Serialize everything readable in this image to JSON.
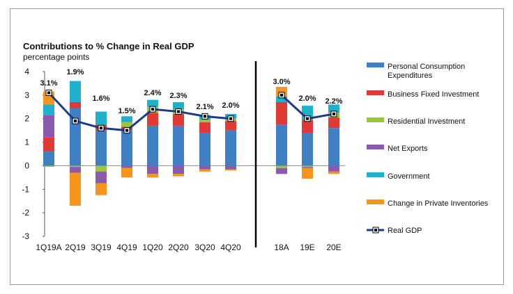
{
  "chart_data": {
    "type": "bar",
    "title": "Contributions to % Change in Real GDP",
    "subtitle": "percentage points",
    "ylim": [
      -3,
      4
    ],
    "yticks": [
      4,
      3,
      2,
      1,
      0,
      -1,
      -2,
      -3
    ],
    "categories": [
      "1Q19A",
      "2Q19",
      "3Q19",
      "4Q19",
      "1Q20",
      "2Q20",
      "3Q20",
      "4Q20",
      "18A",
      "19E",
      "20E"
    ],
    "legend_position": "right",
    "series": [
      {
        "name": "Personal Consumption Expenditures",
        "color": "#3f7fc4",
        "values": [
          0.6,
          2.45,
          1.5,
          1.5,
          1.7,
          1.7,
          1.4,
          1.5,
          1.75,
          1.4,
          1.6
        ]
      },
      {
        "name": "Business Fixed Investment",
        "color": "#e03a36",
        "values": [
          0.6,
          0.25,
          0.25,
          0.15,
          0.55,
          0.5,
          0.45,
          0.4,
          0.95,
          0.55,
          0.45
        ]
      },
      {
        "name": "Residential Investment",
        "color": "#9bc53d",
        "values": [
          -0.05,
          -0.05,
          -0.25,
          0.2,
          0.25,
          0.2,
          0.1,
          0.1,
          -0.1,
          -0.05,
          0.2
        ]
      },
      {
        "name": "Net Exports",
        "color": "#8b5aac",
        "values": [
          0.95,
          -0.25,
          -0.5,
          -0.1,
          -0.35,
          -0.35,
          -0.15,
          -0.15,
          -0.25,
          -0.05,
          -0.25
        ]
      },
      {
        "name": "Government",
        "color": "#1fb1cc",
        "values": [
          0.45,
          0.9,
          0.55,
          0.25,
          0.3,
          0.3,
          0.2,
          0.2,
          0.25,
          0.6,
          0.35
        ]
      },
      {
        "name": "Change in Private Inventories",
        "color": "#f7941d",
        "values": [
          0.55,
          -1.4,
          -0.5,
          -0.4,
          -0.15,
          -0.1,
          -0.1,
          -0.05,
          0.4,
          -0.45,
          -0.1
        ]
      }
    ],
    "line": {
      "name": "Real GDP",
      "color": "#1a3a8a",
      "values": [
        3.1,
        1.9,
        1.6,
        1.5,
        2.4,
        2.3,
        2.1,
        2.0,
        3.0,
        2.0,
        2.2
      ]
    },
    "data_labels": [
      "3.1%",
      "1.9%",
      "1.6%",
      "1.5%",
      "2.4%",
      "2.3%",
      "2.1%",
      "2.0%",
      "3.0%",
      "2.0%",
      "2.2%"
    ],
    "legend": [
      {
        "lines": [
          "Personal Consumption",
          "Expenditures"
        ],
        "kind": "box",
        "color": "#3f7fc4"
      },
      {
        "lines": [
          "Business Fixed Investment"
        ],
        "kind": "box",
        "color": "#e03a36"
      },
      {
        "lines": [
          "Residential Investment"
        ],
        "kind": "box",
        "color": "#9bc53d"
      },
      {
        "lines": [
          "Net Exports"
        ],
        "kind": "box",
        "color": "#8b5aac"
      },
      {
        "lines": [
          "Government"
        ],
        "kind": "box",
        "color": "#1fb1cc"
      },
      {
        "lines": [
          "Change in Private Inventories"
        ],
        "kind": "box",
        "color": "#f7941d"
      },
      {
        "lines": [
          "Real GDP"
        ],
        "kind": "line",
        "color": "#1a3a8a"
      }
    ]
  }
}
